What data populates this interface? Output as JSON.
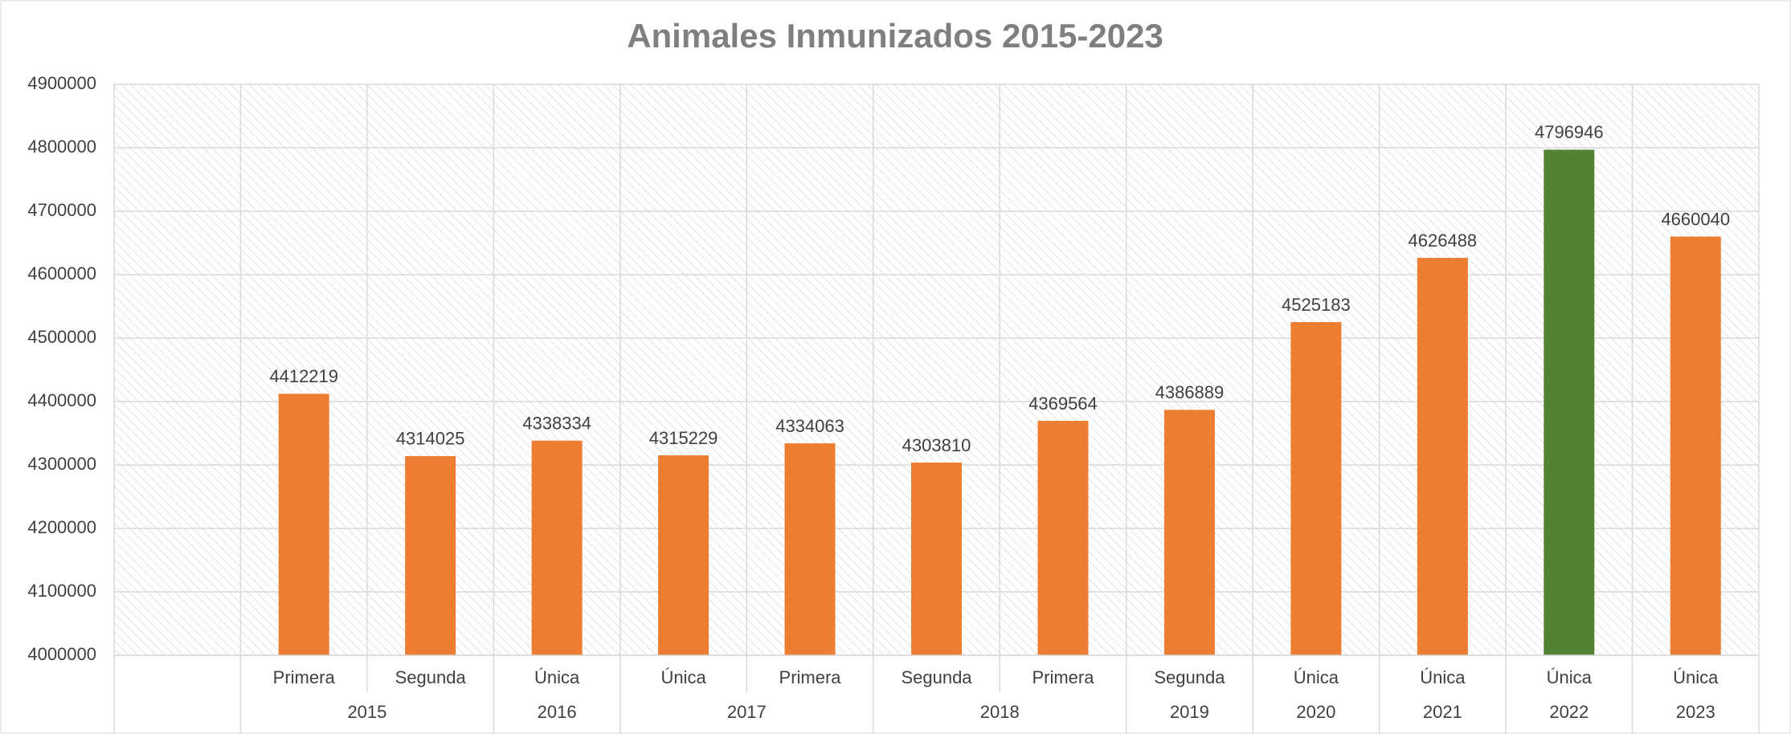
{
  "chart_data": {
    "type": "bar",
    "title": "Animales Inmunizados 2015-2023",
    "categories": [
      null,
      "Primera",
      "Segunda",
      "Única",
      "Única",
      "Primera",
      "Segunda",
      "Primera",
      "Segunda",
      "Única",
      "Única",
      "Única",
      "Única"
    ],
    "groups": [
      null,
      "2015",
      "2015",
      "2016",
      "2017",
      "2017",
      "2018",
      "2018",
      "2019",
      "2020",
      "2021",
      "2022",
      "2023"
    ],
    "values": [
      null,
      4412219,
      4314025,
      4338334,
      4315229,
      4334063,
      4303810,
      4369564,
      4386889,
      4525183,
      4626488,
      4796946,
      4660040
    ],
    "colors": [
      null,
      "#ed7d31",
      "#ed7d31",
      "#ed7d31",
      "#ed7d31",
      "#ed7d31",
      "#ed7d31",
      "#ed7d31",
      "#ed7d31",
      "#ed7d31",
      "#ed7d31",
      "#548235",
      "#ed7d31"
    ],
    "ylim": [
      4000000,
      4900000
    ],
    "yticks": [
      4000000,
      4100000,
      4200000,
      4300000,
      4400000,
      4500000,
      4600000,
      4700000,
      4800000,
      4900000
    ],
    "grid": true
  }
}
